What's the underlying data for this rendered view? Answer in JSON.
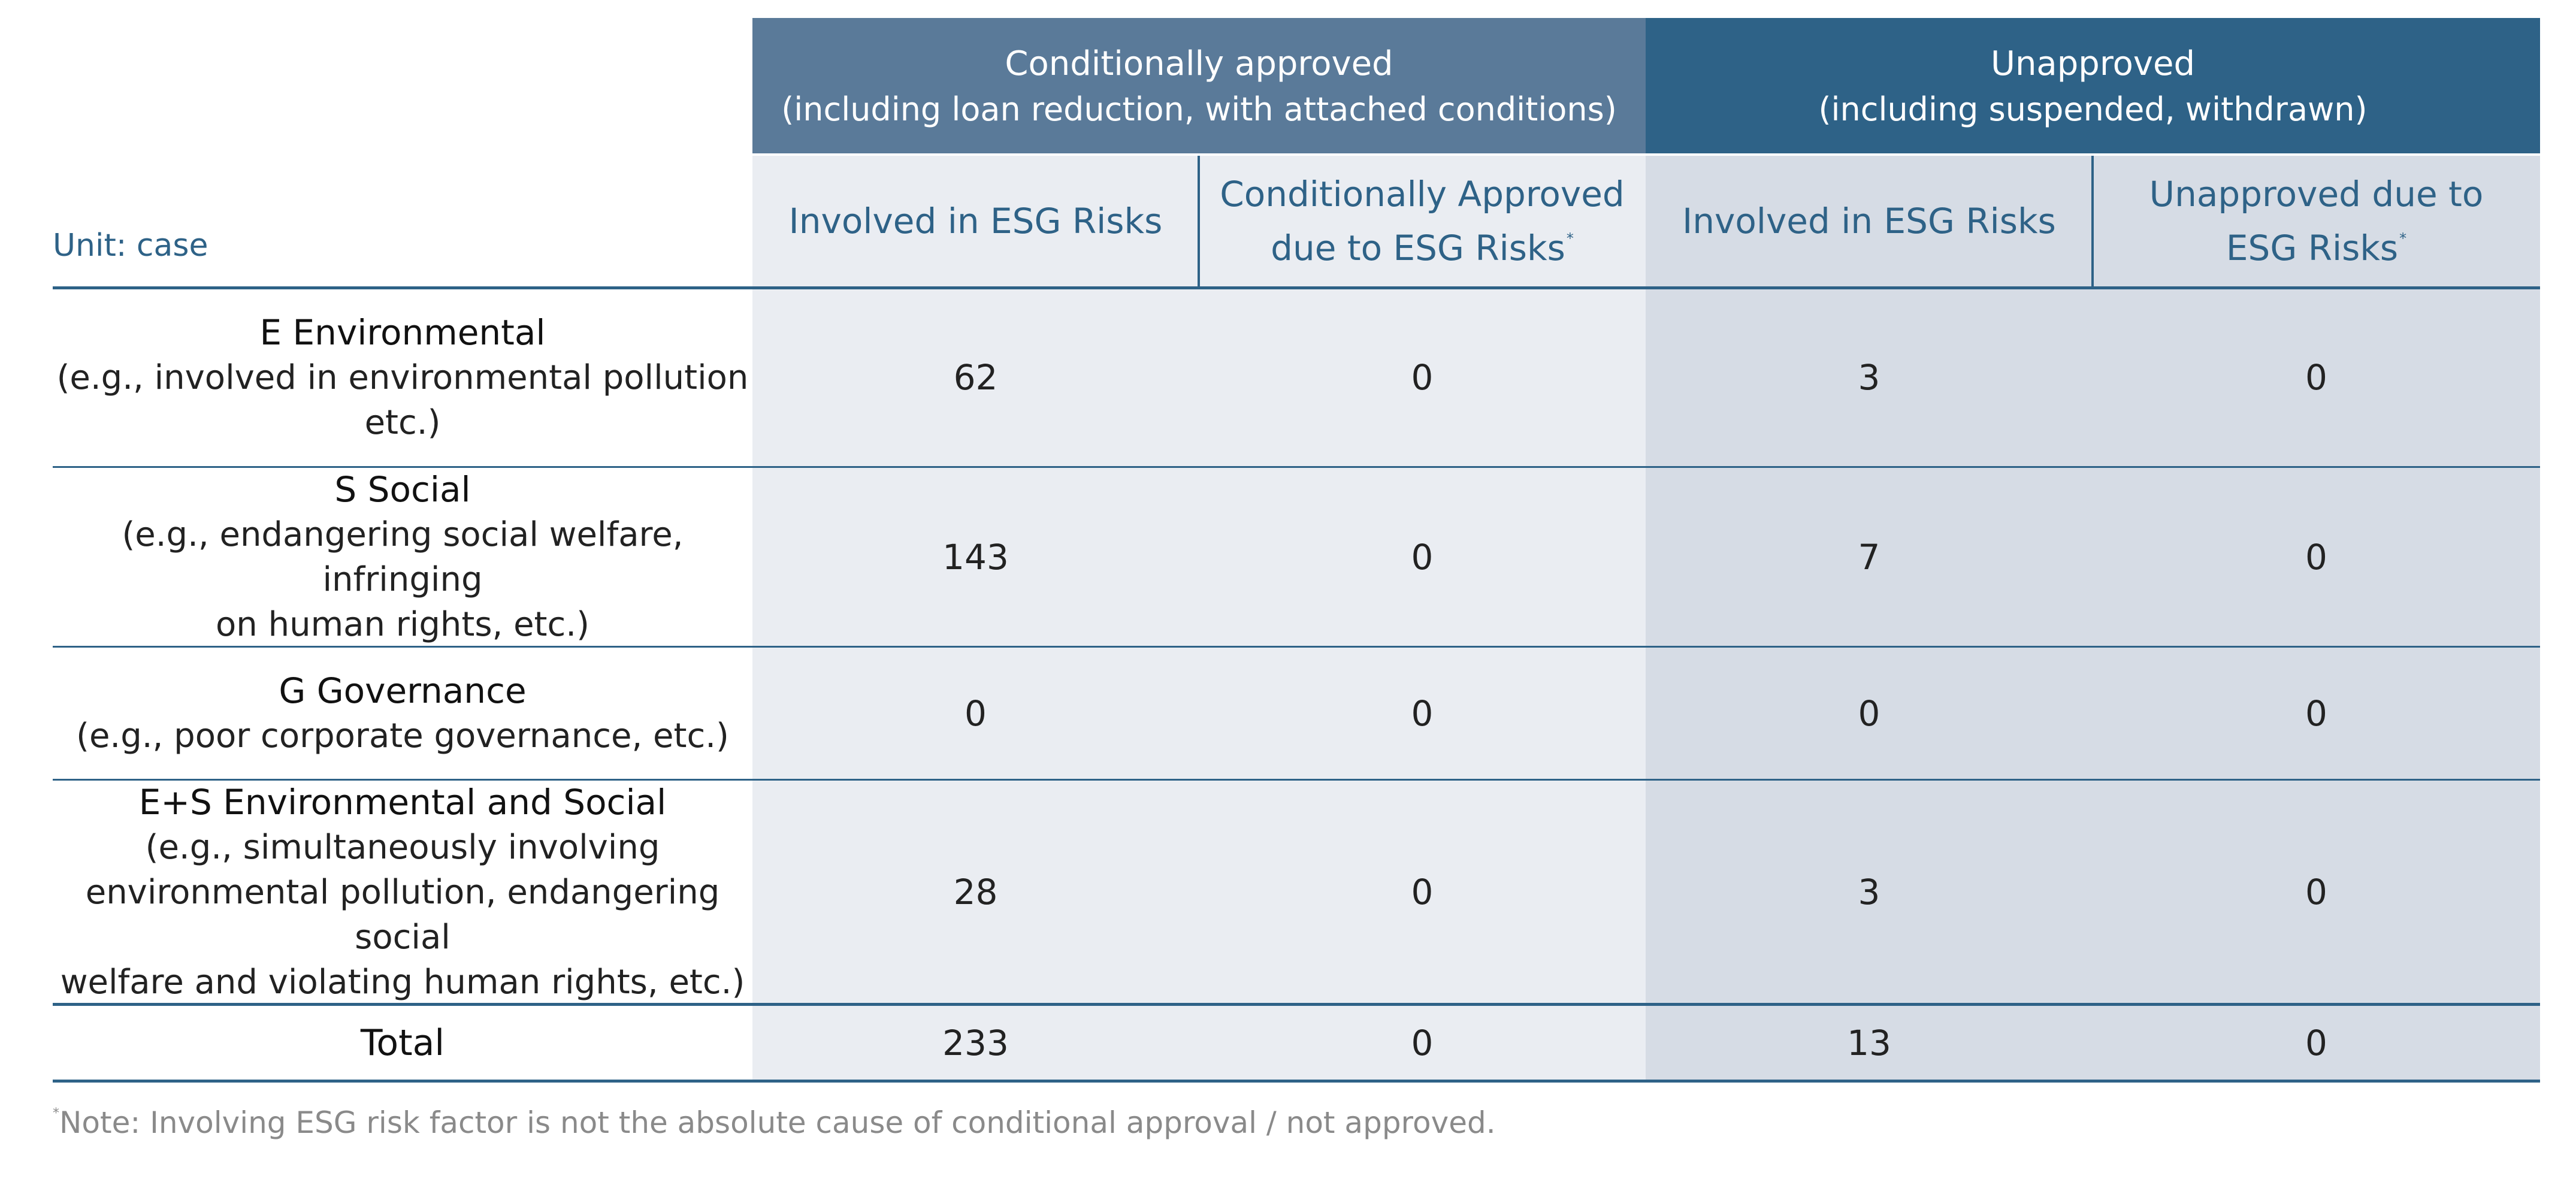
{
  "header": {
    "group_a": {
      "title": "Conditionally approved",
      "subtitle": "(including loan reduction, with attached conditions)"
    },
    "group_b": {
      "title": "Unapproved",
      "subtitle": "(including suspended, withdrawn)"
    },
    "unit_label": "Unit: case",
    "sub_columns": [
      {
        "text": "Involved in ESG Risks",
        "footnote": ""
      },
      {
        "line1": "Conditionally Approved",
        "line2": "due to ESG Risks",
        "footnote": "*"
      },
      {
        "text": "Involved in ESG Risks",
        "footnote": ""
      },
      {
        "line1": "Unapproved due to",
        "line2": "ESG Risks",
        "footnote": "*"
      }
    ]
  },
  "rows": [
    {
      "title": "E Environmental",
      "desc_lines": [
        "(e.g., involved in environmental pollution",
        "etc.)"
      ],
      "values": [
        "62",
        "0",
        "3",
        "0"
      ]
    },
    {
      "title": "S Social",
      "desc_lines": [
        "(e.g., endangering social welfare, infringing",
        "on human rights, etc.)"
      ],
      "values": [
        "143",
        "0",
        "7",
        "0"
      ]
    },
    {
      "title": "G Governance",
      "desc_lines": [
        "(e.g., poor corporate governance, etc.)"
      ],
      "values": [
        "0",
        "0",
        "0",
        "0"
      ]
    },
    {
      "title": "E+S Environmental and Social",
      "desc_lines": [
        "(e.g., simultaneously involving",
        "environmental pollution, endangering social",
        "welfare and violating human rights, etc.)"
      ],
      "values": [
        "28",
        "0",
        "3",
        "0"
      ]
    }
  ],
  "total": {
    "label": "Total",
    "values": [
      "233",
      "0",
      "13",
      "0"
    ]
  },
  "note": {
    "marker": "*",
    "text": "Note: Involving ESG risk factor is not the absolute cause of conditional approval / not approved."
  },
  "colors": {
    "group_a_bg": "#5a7a99",
    "group_b_bg": "#2e6287",
    "col_a_bg": "#eaedf2",
    "col_b_bg": "#d6dce5",
    "accent": "#2e6287"
  }
}
